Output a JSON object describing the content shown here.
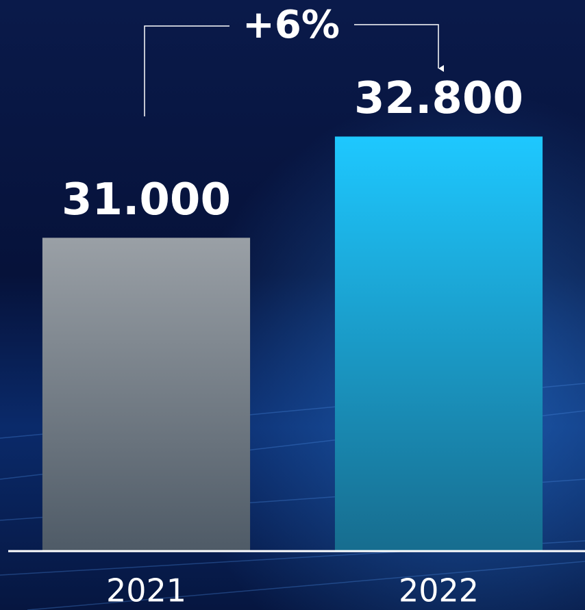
{
  "chart_data": {
    "type": "bar",
    "categories": [
      "2021",
      "2022"
    ],
    "values": [
      31000,
      32800
    ],
    "value_labels": [
      "31.000",
      "32.800"
    ],
    "colors": [
      "#9aa0a6",
      "#1ec8ff"
    ],
    "annotation": "+6%",
    "ylim": [
      25430,
      33000
    ]
  }
}
